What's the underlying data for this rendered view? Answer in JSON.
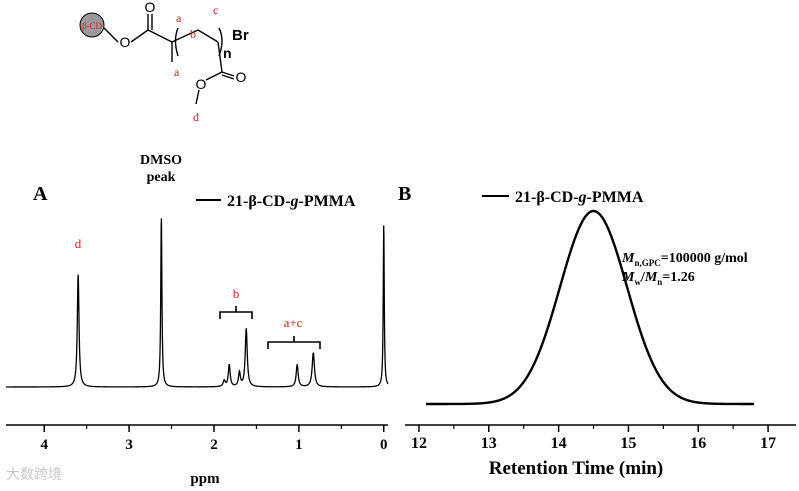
{
  "structure": {
    "core_label": "β-CD",
    "bromo_label": "Br",
    "repeat_label": "n",
    "oxygen_label": "O",
    "site_labels": {
      "a": "a",
      "b": "b",
      "c": "c",
      "d": "d"
    },
    "label_color": "#d42020"
  },
  "panels": {
    "nmr_letter": "A",
    "sec_letter": "B"
  },
  "chart_data": [
    {
      "type": "line",
      "panel": "A",
      "xlabel": "ppm",
      "ylabel": "",
      "x_reversed": true,
      "xlim": [
        4.45,
        -0.05
      ],
      "x_ticks": [
        4,
        3,
        2,
        1,
        0
      ],
      "legend": "21-β-CD-g-PMMA",
      "legend_parts": [
        "21-β-CD-",
        "g",
        "-PMMA"
      ],
      "baseline": 0.0,
      "peaks": [
        {
          "ppm": 3.6,
          "height": 0.56,
          "width": 0.012
        },
        {
          "ppm": 2.62,
          "height": 0.85,
          "width": 0.008
        },
        {
          "ppm": 1.88,
          "height": 0.03,
          "width": 0.015
        },
        {
          "ppm": 1.82,
          "height": 0.11,
          "width": 0.013
        },
        {
          "ppm": 1.7,
          "height": 0.07,
          "width": 0.013
        },
        {
          "ppm": 1.62,
          "height": 0.29,
          "width": 0.014
        },
        {
          "ppm": 1.02,
          "height": 0.11,
          "width": 0.014
        },
        {
          "ppm": 0.83,
          "height": 0.17,
          "width": 0.016
        },
        {
          "ppm": 0.0,
          "height": 0.81,
          "width": 0.007
        }
      ],
      "annotations": [
        {
          "text": "DMSO",
          "ppm": 2.62
        },
        {
          "text": "peak",
          "ppm": 2.62
        },
        {
          "text": "d",
          "ppm": 3.6
        },
        {
          "text": "b",
          "ppm": 1.72
        },
        {
          "text": "a+c",
          "ppm": 1.0
        }
      ]
    },
    {
      "type": "line",
      "panel": "B",
      "xlabel": "Retention Time (min)",
      "ylabel": "",
      "xlim": [
        11.8,
        17.4
      ],
      "x_ticks": [
        12,
        13,
        14,
        15,
        16,
        17
      ],
      "legend": "21-β-CD-g-PMMA",
      "legend_parts": [
        "21-β-CD-",
        "g",
        "-PMMA"
      ],
      "peak_center": 14.5,
      "peak_sigma": 0.48,
      "x_start": 12.1,
      "x_end": 16.8,
      "info": {
        "mn_line": [
          "M",
          "n,GPC",
          "=100000 g/mol"
        ],
        "pdi_line": [
          "M",
          "w",
          "/",
          "M",
          "n",
          "=1.26"
        ]
      }
    }
  ],
  "watermark": "大数跨境"
}
